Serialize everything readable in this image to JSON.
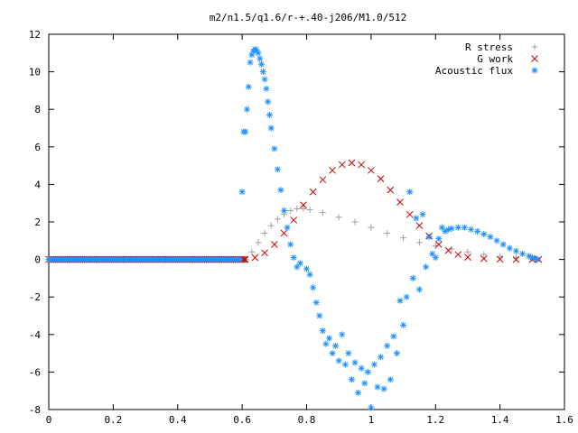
{
  "chart_data": {
    "type": "scatter",
    "title": "m2/n1.5/q1.6/r-+.40-j206/M1.0/512",
    "xlabel": "",
    "ylabel": "",
    "xlim": [
      0,
      1.6
    ],
    "ylim": [
      -8,
      12
    ],
    "x_ticks": [
      "0",
      "0.2",
      "0.4",
      "0.6",
      "0.8",
      "1",
      "1.2",
      "1.4",
      "1.6"
    ],
    "y_ticks": [
      "12",
      "10",
      "8",
      "6",
      "4",
      "2",
      "0",
      "-2",
      "-4",
      "-6",
      "-8"
    ],
    "grid": false,
    "legend_position": "top-right",
    "series": [
      {
        "name": "R stress",
        "marker": "plus",
        "color": "#a0a0a0",
        "x": [
          0.61,
          0.63,
          0.65,
          0.67,
          0.69,
          0.71,
          0.73,
          0.75,
          0.77,
          0.79,
          0.81,
          0.85,
          0.9,
          0.95,
          1.0,
          1.05,
          1.1,
          1.15,
          1.2,
          1.25,
          1.3,
          1.35,
          1.4,
          1.45,
          1.5,
          1.51
        ],
        "y": [
          0.0,
          0.4,
          0.9,
          1.4,
          1.8,
          2.15,
          2.4,
          2.6,
          2.7,
          2.7,
          2.65,
          2.5,
          2.25,
          2.0,
          1.7,
          1.4,
          1.15,
          0.9,
          0.72,
          0.55,
          0.4,
          0.27,
          0.16,
          0.08,
          0.02,
          0.0
        ]
      },
      {
        "name": "G work",
        "marker": "cross",
        "color": "#cc0000",
        "x": [
          0.61,
          0.64,
          0.67,
          0.7,
          0.73,
          0.76,
          0.79,
          0.82,
          0.85,
          0.88,
          0.91,
          0.94,
          0.97,
          1.0,
          1.03,
          1.06,
          1.09,
          1.12,
          1.15,
          1.18,
          1.21,
          1.24,
          1.27,
          1.3,
          1.35,
          1.4,
          1.45,
          1.5,
          1.52
        ],
        "y": [
          0.0,
          0.1,
          0.35,
          0.8,
          1.4,
          2.1,
          2.9,
          3.6,
          4.25,
          4.75,
          5.05,
          5.15,
          5.05,
          4.75,
          4.3,
          3.7,
          3.05,
          2.4,
          1.8,
          1.25,
          0.8,
          0.48,
          0.26,
          0.12,
          0.04,
          0.01,
          0.0,
          0.0,
          0.0
        ]
      },
      {
        "name": "Acoustic flux",
        "marker": "star",
        "color": "#1e90ff",
        "x": [
          0.6,
          0.605,
          0.61,
          0.615,
          0.62,
          0.625,
          0.63,
          0.635,
          0.64,
          0.645,
          0.65,
          0.655,
          0.66,
          0.665,
          0.67,
          0.675,
          0.68,
          0.685,
          0.69,
          0.7,
          0.71,
          0.72,
          0.73,
          0.74,
          0.75,
          0.76,
          0.77,
          0.78,
          0.8,
          0.81,
          0.82,
          0.83,
          0.84,
          0.85,
          0.86,
          0.87,
          0.88,
          0.89,
          0.9,
          0.91,
          0.92,
          0.93,
          0.94,
          0.95,
          0.96,
          0.97,
          0.98,
          0.99,
          1.0,
          1.01,
          1.02,
          1.03,
          1.04,
          1.05,
          1.06,
          1.07,
          1.08,
          1.09,
          1.1,
          1.11,
          1.12,
          1.13,
          1.14,
          1.15,
          1.16,
          1.17,
          1.18,
          1.19,
          1.2,
          1.21,
          1.22,
          1.23,
          1.24,
          1.25,
          1.27,
          1.29,
          1.31,
          1.33,
          1.35,
          1.37,
          1.39,
          1.41,
          1.43,
          1.45,
          1.47,
          1.49,
          1.5,
          1.51,
          1.515
        ],
        "y": [
          3.6,
          6.8,
          6.8,
          8.0,
          9.2,
          10.5,
          10.9,
          11.1,
          11.2,
          11.15,
          11.0,
          10.7,
          10.4,
          10.0,
          9.6,
          9.1,
          8.4,
          7.7,
          7.0,
          5.9,
          4.8,
          3.7,
          2.6,
          1.7,
          0.8,
          0.1,
          -0.4,
          -0.2,
          -0.5,
          -0.8,
          -1.5,
          -2.3,
          -3.0,
          -3.8,
          -4.5,
          -4.2,
          -5.0,
          -4.6,
          -5.4,
          -4.0,
          -5.6,
          -5.0,
          -6.4,
          -5.5,
          -7.1,
          -5.8,
          -6.6,
          -6.0,
          -7.9,
          -5.6,
          -6.8,
          -5.2,
          -6.9,
          -4.6,
          -6.4,
          -4.1,
          -5.0,
          -2.2,
          -3.5,
          -2.0,
          3.6,
          -1.0,
          2.2,
          -1.6,
          2.4,
          -0.4,
          1.2,
          0.3,
          0.1,
          1.1,
          1.7,
          1.5,
          1.6,
          1.65,
          1.7,
          1.7,
          1.6,
          1.5,
          1.35,
          1.2,
          1.0,
          0.8,
          0.6,
          0.45,
          0.3,
          0.18,
          0.1,
          0.05,
          0.0
        ]
      }
    ]
  }
}
